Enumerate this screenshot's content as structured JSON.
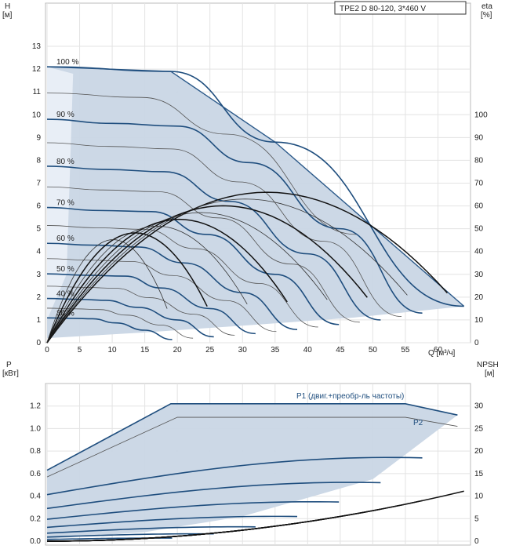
{
  "chart_data": [
    {
      "type": "line",
      "title": "TPE2 D 80-120, 3*460 V",
      "ylabel_left": "H\n[м]",
      "ylabel_right": "eta\n[%]",
      "xlabel": "Q [м³/ч]",
      "xlim": [
        0,
        65
      ],
      "ylim": [
        0,
        14
      ],
      "ylim_right": [
        0,
        140
      ],
      "x_ticks": [
        "0",
        "5",
        "10",
        "15",
        "20",
        "25",
        "30",
        "35",
        "40",
        "45",
        "50",
        "55",
        "60"
      ],
      "y_ticks": [
        "0",
        "1",
        "2",
        "3",
        "4",
        "5",
        "6",
        "7",
        "8",
        "9",
        "10",
        "11",
        "12",
        "13"
      ],
      "y_ticks_right": [
        "0",
        "10",
        "20",
        "30",
        "40",
        "50",
        "60",
        "70",
        "80",
        "90",
        "100"
      ],
      "speed_labels": [
        "100 %",
        "90 %",
        "80 %",
        "70 %",
        "60 %",
        "50 %",
        "40 %",
        "30 %"
      ],
      "series": [
        {
          "speed": 1.0,
          "x": [
            0,
            19,
            35,
            64
          ],
          "y": [
            12.1,
            11.9,
            8.8,
            1.6
          ]
        },
        {
          "speed": 0.9,
          "x": [
            0,
            10,
            20,
            31,
            45,
            57.6
          ],
          "y": [
            9.8,
            9.62,
            9.5,
            7.9,
            5.0,
            1.3
          ]
        },
        {
          "speed": 0.8,
          "x": [
            0,
            9,
            18,
            28,
            40,
            51.2
          ],
          "y": [
            7.74,
            7.6,
            7.5,
            6.2,
            3.9,
            1.0
          ]
        },
        {
          "speed": 0.7,
          "x": [
            0,
            8,
            16,
            24.5,
            35,
            44.8
          ],
          "y": [
            5.93,
            5.8,
            5.75,
            4.75,
            3.0,
            0.8
          ]
        },
        {
          "speed": 0.6,
          "x": [
            0,
            7,
            14,
            21,
            30,
            38.4
          ],
          "y": [
            4.36,
            4.28,
            4.2,
            3.5,
            2.2,
            0.58
          ]
        },
        {
          "speed": 0.5,
          "x": [
            0,
            6,
            12,
            17.5,
            25,
            32
          ],
          "y": [
            3.02,
            2.96,
            2.92,
            2.4,
            1.5,
            0.4
          ]
        },
        {
          "speed": 0.4,
          "x": [
            0,
            5,
            9,
            14,
            20,
            25.6
          ],
          "y": [
            1.94,
            1.9,
            1.86,
            1.55,
            1.0,
            0.26
          ]
        },
        {
          "speed": 0.3,
          "x": [
            0,
            4,
            7,
            10.5,
            15,
            19.2
          ],
          "y": [
            1.09,
            1.07,
            1.05,
            0.87,
            0.55,
            0.14
          ]
        }
      ]
    },
    {
      "type": "line",
      "ylabel_left": "P\n[кВт]",
      "ylabel_right": "NPSH\n[м]",
      "xlim": [
        0,
        65
      ],
      "ylim": [
        0,
        1.4
      ],
      "ylim_right": [
        0,
        35
      ],
      "y_ticks": [
        "0.0",
        "0.2",
        "0.4",
        "0.6",
        "0.8",
        "1.0",
        "1.2"
      ],
      "y_ticks_right": [
        "0",
        "5",
        "10",
        "15",
        "20",
        "25",
        "30"
      ],
      "annotations": [
        "P1 (двиг.+преобр-ль частоты)",
        "P2"
      ],
      "series": [
        {
          "name": "P1 (двиг.+преобр-ль частоты)",
          "x": [
            0,
            19,
            55,
            63
          ],
          "y": [
            0.63,
            1.22,
            1.22,
            1.12
          ]
        },
        {
          "name": "P2",
          "x": [
            0,
            20,
            55,
            63
          ],
          "y": [
            0.57,
            1.1,
            1.1,
            1.02
          ]
        }
      ]
    }
  ]
}
